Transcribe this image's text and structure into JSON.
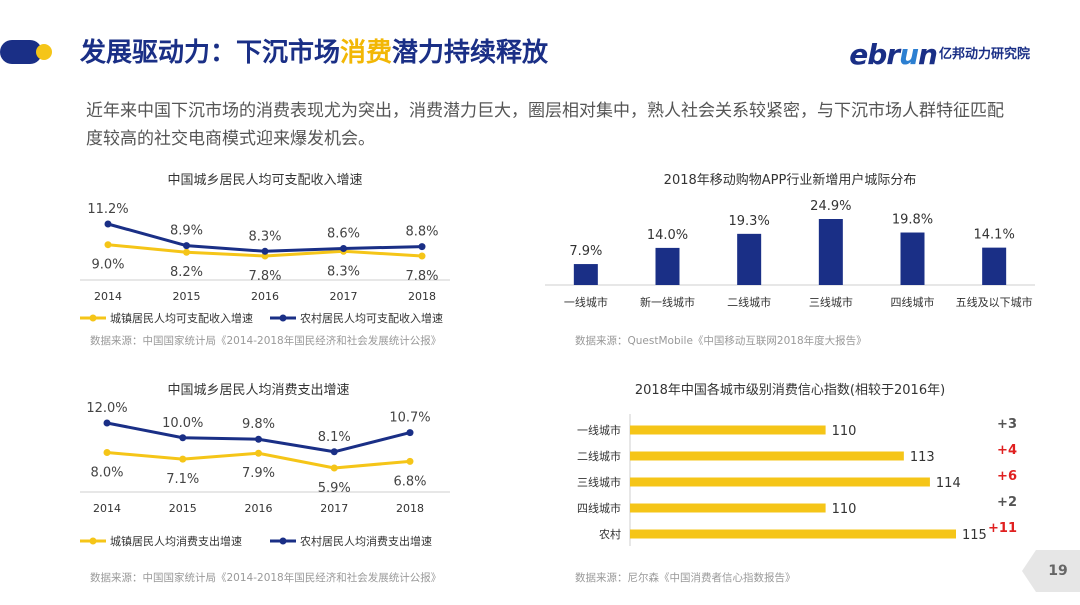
{
  "header": {
    "title_prefix": "发展驱动力：下沉市场",
    "title_highlight": "消费",
    "title_suffix": "潜力持续释放",
    "logo_brand_a": "ebr",
    "logo_brand_u": "u",
    "logo_brand_b": "n",
    "logo_org": "亿邦动力研究院"
  },
  "intro": "近年来中国下沉市场的消费表现尤为突出，消费潜力巨大，圈层相对集中，熟人社会关系较紧密，与下沉市场人群特征匹配度较高的社交电商模式迎来爆发机会。",
  "colors": {
    "navy": "#1a2f86",
    "yellow": "#f5c518",
    "red": "#e02020"
  },
  "chart_data": [
    {
      "id": "income",
      "type": "line",
      "title": "中国城乡居民人均可支配收入增速",
      "categories": [
        "2014",
        "2015",
        "2016",
        "2017",
        "2018"
      ],
      "series": [
        {
          "name": "城镇居民人均可支配收入增速",
          "values": [
            9.0,
            8.2,
            7.8,
            8.3,
            7.8
          ],
          "labels": [
            "9.0%",
            "8.2%",
            "7.8%",
            "8.3%",
            "7.8%"
          ],
          "color": "#f5c518"
        },
        {
          "name": "农村居民人均可支配收入增速",
          "values": [
            11.2,
            8.9,
            8.3,
            8.6,
            8.8
          ],
          "labels": [
            "11.2%",
            "8.9%",
            "8.3%",
            "8.6%",
            "8.8%"
          ],
          "color": "#1a2f86"
        }
      ],
      "legend": "bottom",
      "source": "数据来源：中国国家统计局《2014-2018年国民经济和社会发展统计公报》"
    },
    {
      "id": "app",
      "type": "bar",
      "title": "2018年移动购物APP行业新增用户城际分布",
      "categories": [
        "一线城市",
        "新一线城市",
        "二线城市",
        "三线城市",
        "四线城市",
        "五线及以下城市"
      ],
      "values": [
        7.9,
        14.0,
        19.3,
        24.9,
        19.8,
        14.1
      ],
      "labels": [
        "7.9%",
        "14.0%",
        "19.3%",
        "24.9%",
        "19.8%",
        "14.1%"
      ],
      "color": "#1a2f86",
      "source": "数据来源：QuestMobile《中国移动互联网2018年度大报告》"
    },
    {
      "id": "spend",
      "type": "line",
      "title": "中国城乡居民人均消费支出增速",
      "categories": [
        "2014",
        "2015",
        "2016",
        "2017",
        "2018"
      ],
      "series": [
        {
          "name": "城镇居民人均消费支出增速",
          "values": [
            8.0,
            7.1,
            7.9,
            5.9,
            6.8
          ],
          "labels": [
            "8.0%",
            "7.1%",
            "7.9%",
            "5.9%",
            "6.8%"
          ],
          "color": "#f5c518"
        },
        {
          "name": "农村居民人均消费支出增速",
          "values": [
            12.0,
            10.0,
            9.8,
            8.1,
            10.7
          ],
          "labels": [
            "12.0%",
            "10.0%",
            "9.8%",
            "8.1%",
            "10.7%"
          ],
          "color": "#1a2f86"
        }
      ],
      "legend": "bottom",
      "source": "数据来源：中国国家统计局《2014-2018年国民经济和社会发展统计公报》"
    },
    {
      "id": "conf",
      "type": "bar",
      "orientation": "horizontal",
      "title": "2018年中国各城市级别消费信心指数(相较于2016年)",
      "categories": [
        "一线城市",
        "二线城市",
        "三线城市",
        "四线城市",
        "农村"
      ],
      "values": [
        110,
        113,
        114,
        110,
        115
      ],
      "changes": [
        "+3",
        "+4",
        "+6",
        "+2",
        "+11"
      ],
      "change_highlight": [
        false,
        true,
        true,
        false,
        true
      ],
      "color": "#f5c518",
      "source": "数据来源：尼尔森《中国消费者信心指数报告》"
    }
  ],
  "page_number": "19"
}
